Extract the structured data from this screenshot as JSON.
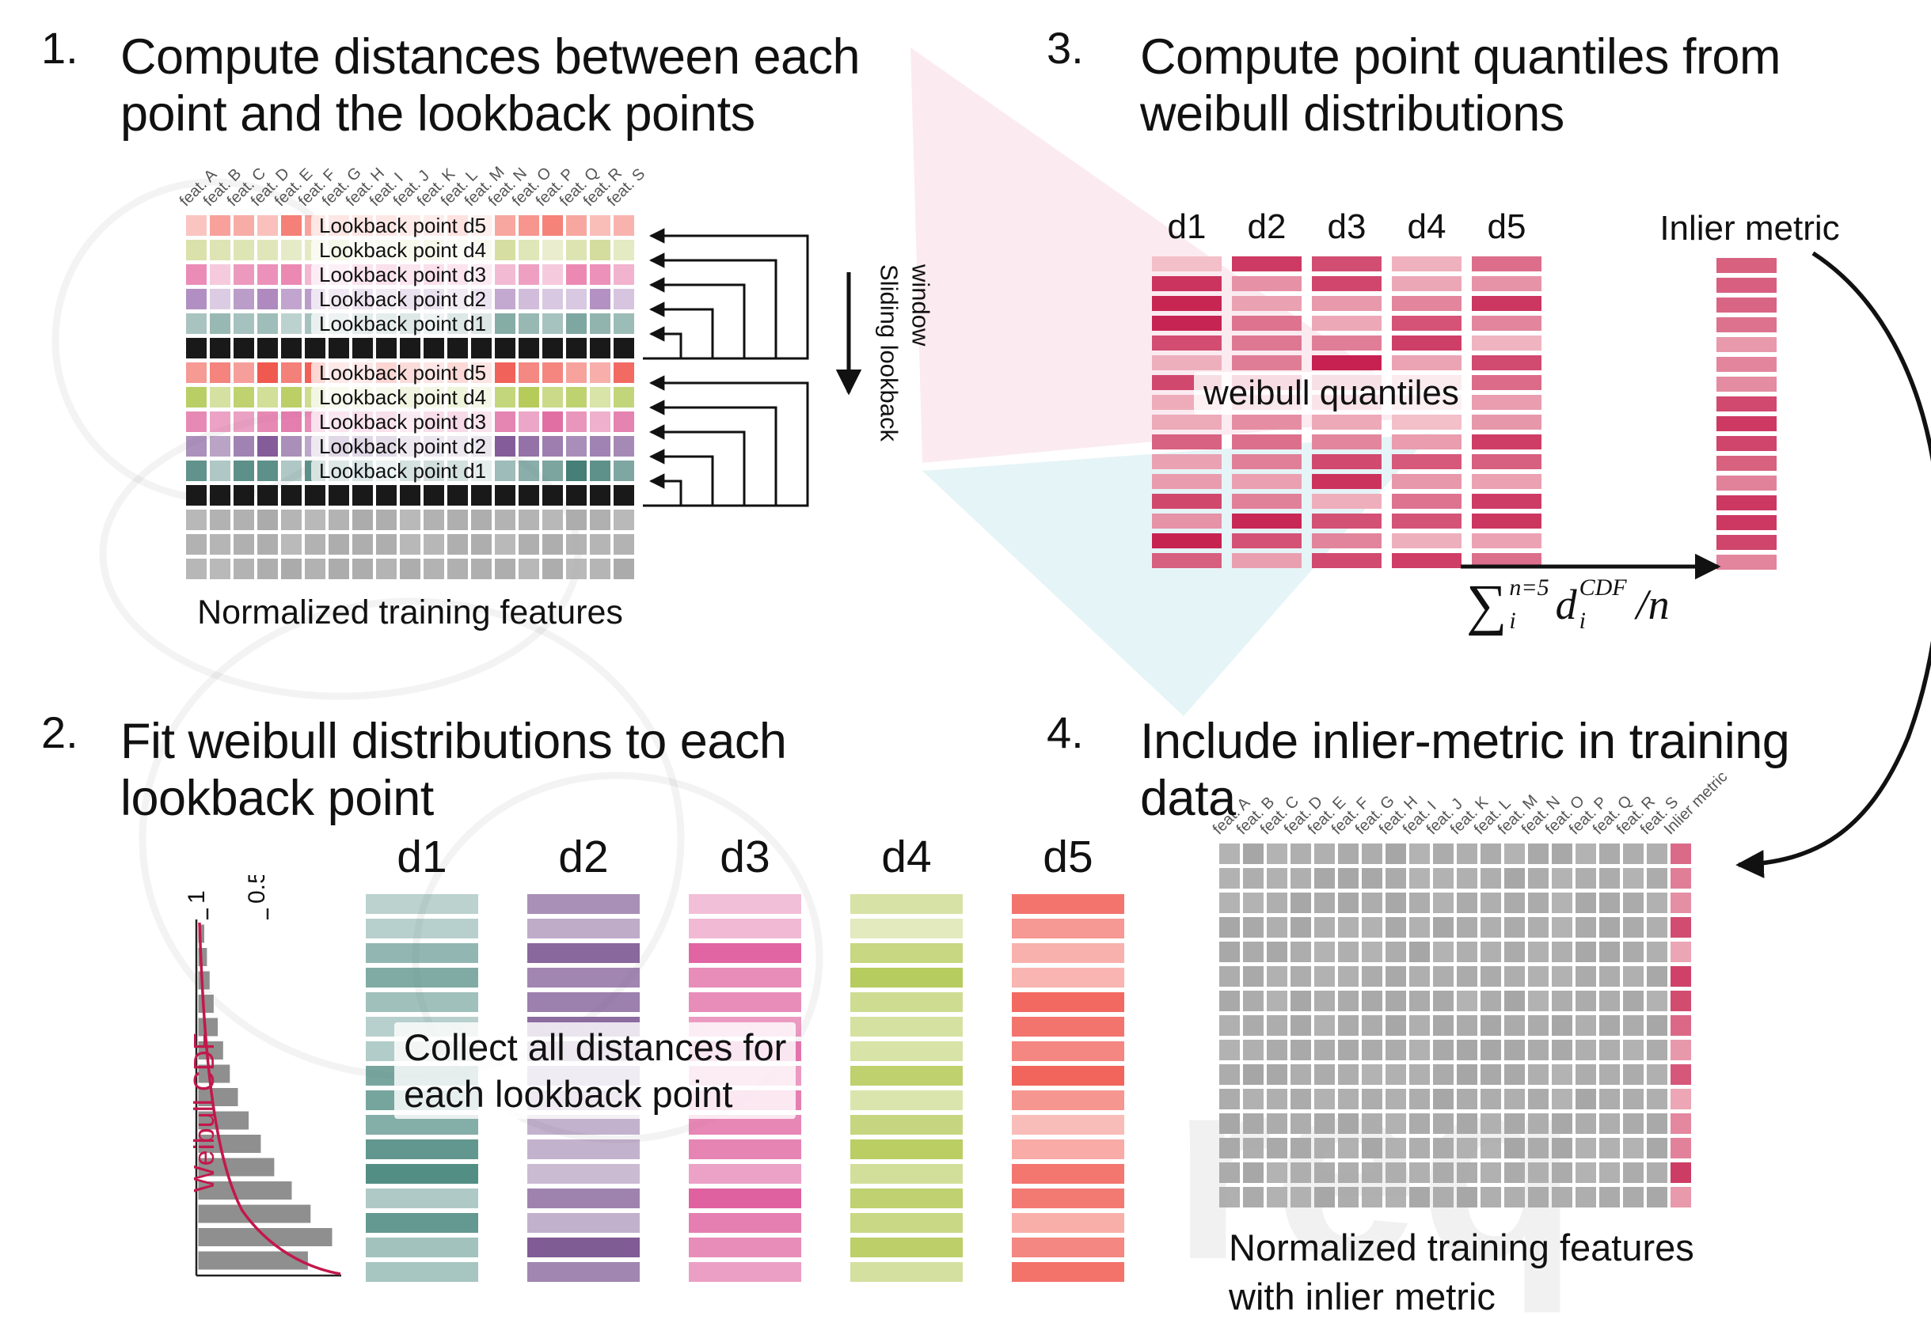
{
  "watermark": {
    "text": "req"
  },
  "steps": {
    "s1": {
      "number": "1.",
      "title": [
        "Compute distances between each",
        "point and the lookback points"
      ],
      "caption": "Normalized training features",
      "sliding_label": [
        "Sliding lookback",
        "window"
      ],
      "features": [
        "feat. A",
        "feat. B",
        "feat. C",
        "feat. D",
        "feat. E",
        "feat. F",
        "feat. G",
        "feat. H",
        "feat. I",
        "feat. J",
        "feat. K",
        "feat. L",
        "feat. M",
        "feat. N",
        "feat. O",
        "feat. P",
        "feat. Q",
        "feat. R",
        "feat. S"
      ],
      "rows": [
        {
          "type": "lookback",
          "label": "Lookback point d5",
          "color": "#f4756b"
        },
        {
          "type": "lookback",
          "label": "Lookback point d4",
          "color": "#d3dc9b"
        },
        {
          "type": "lookback",
          "label": "Lookback point d3",
          "color": "#ea85b1"
        },
        {
          "type": "lookback",
          "label": "Lookback point d2",
          "color": "#ab86bd"
        },
        {
          "type": "lookback",
          "label": "Lookback point d1",
          "color": "#74a099"
        },
        {
          "type": "black"
        },
        {
          "type": "lookback",
          "label": "Lookback point d5",
          "color": "#f0564d"
        },
        {
          "type": "lookback",
          "label": "Lookback point d4",
          "color": "#b4cb59"
        },
        {
          "type": "lookback",
          "label": "Lookback point d3",
          "color": "#dc5a97"
        },
        {
          "type": "lookback",
          "label": "Lookback point d2",
          "color": "#7c5394"
        },
        {
          "type": "lookback",
          "label": "Lookback point d1",
          "color": "#457f78"
        },
        {
          "type": "black"
        },
        {
          "type": "gray"
        },
        {
          "type": "gray"
        },
        {
          "type": "gray"
        }
      ]
    },
    "s2": {
      "number": "2.",
      "title": [
        "Fit weibull distributions to each",
        "lookback point"
      ],
      "plot": {
        "ylabel": "Weibull CDF",
        "ticks": [
          "1",
          "0.5"
        ],
        "hist": [
          0.05,
          0.07,
          0.09,
          0.12,
          0.15,
          0.19,
          0.24,
          0.3,
          0.38,
          0.47,
          0.57,
          0.7,
          0.84,
          1.0,
          0.82
        ]
      },
      "columns": [
        {
          "name": "d1",
          "color": "#4d8a81"
        },
        {
          "name": "d2",
          "color": "#7b5591"
        },
        {
          "name": "d3",
          "color": "#df5f9e"
        },
        {
          "name": "d4",
          "color": "#b6cb5c"
        },
        {
          "name": "d5",
          "color": "#f0544b"
        }
      ],
      "bars_per_column": 16,
      "overlay": [
        "Collect all distances for",
        "each lookback point"
      ]
    },
    "s3": {
      "number": "3.",
      "title": [
        "Compute point quantiles from",
        "weibull distributions"
      ],
      "columns": [
        "d1",
        "d2",
        "d3",
        "d4",
        "d5"
      ],
      "bars_per_column": 16,
      "overlay": "weibull quantiles",
      "inlier_label": "Inlier metric",
      "palette": {
        "light": "#f3bfc9",
        "dark": "#c51f4e"
      },
      "formula": {
        "sum": "∑",
        "sum_sup": "n=5",
        "sum_sub": "i",
        "var": "d",
        "var_sup": "CDF",
        "var_sub": "i",
        "tail": "/n"
      }
    },
    "s4": {
      "number": "4.",
      "title": [
        "Include inlier-metric in training",
        "data"
      ],
      "features": [
        "feat. A",
        "feat. B",
        "feat. C",
        "feat. D",
        "feat. E",
        "feat. F",
        "feat. G",
        "feat. H",
        "feat. I",
        "feat. J",
        "feat. K",
        "feat. L",
        "feat. M",
        "feat. N",
        "feat. O",
        "feat. P",
        "feat. Q",
        "feat. R",
        "feat. S",
        "Inlier metric"
      ],
      "rows": 15,
      "cell_color": "#a6a6a6",
      "inlier_palette": {
        "light": "#f3bfc9",
        "dark": "#c51f4e"
      },
      "caption": [
        "Normalized training features",
        "with inlier metric"
      ]
    }
  }
}
